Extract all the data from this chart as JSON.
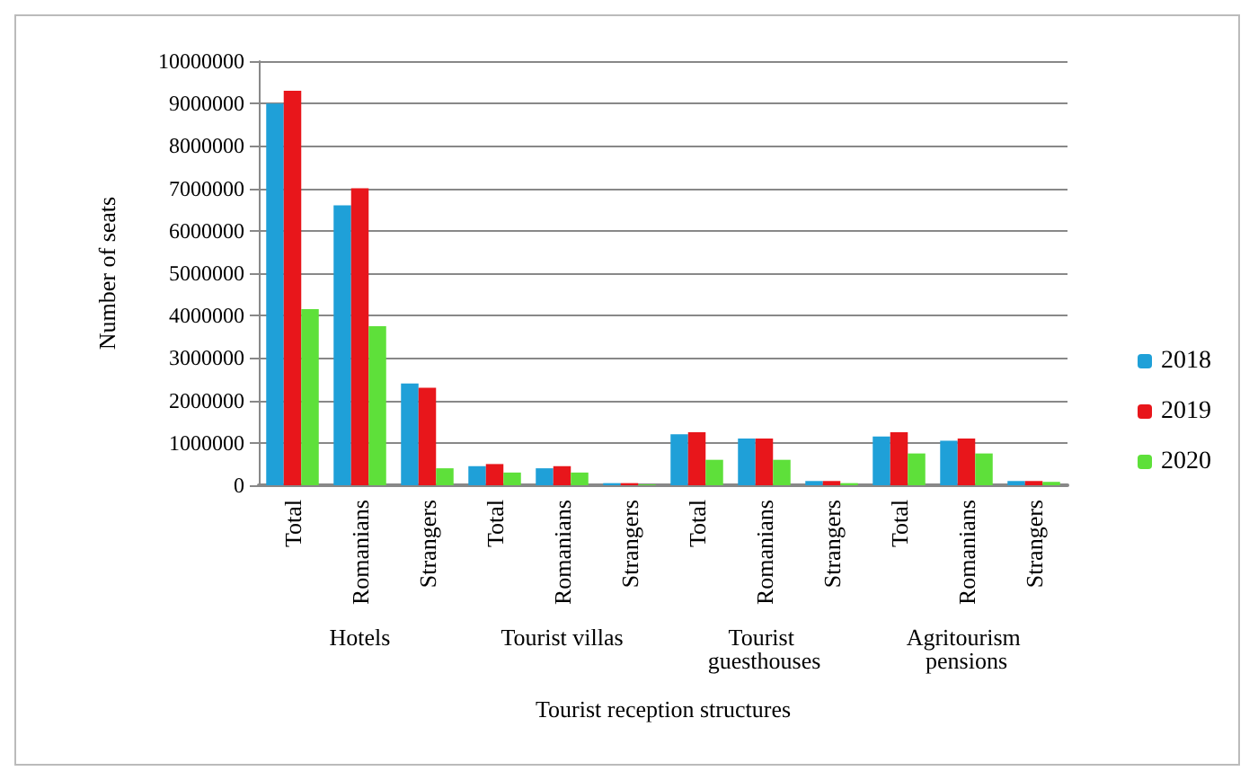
{
  "chart_data": {
    "type": "bar",
    "categories": [
      "Total",
      "Romanians",
      "Strangers",
      "Total",
      "Romanians",
      "Strangers",
      "Total",
      "Romanians",
      "Strangers",
      "Total",
      "Romanians",
      "Strangers"
    ],
    "series": [
      {
        "name": "2018",
        "color": "#1fa0d8",
        "values": [
          9000000,
          6600000,
          2400000,
          450000,
          400000,
          50000,
          1200000,
          1100000,
          100000,
          1150000,
          1050000,
          100000
        ]
      },
      {
        "name": "2019",
        "color": "#e8161b",
        "values": [
          9300000,
          7000000,
          2300000,
          500000,
          450000,
          50000,
          1250000,
          1100000,
          100000,
          1250000,
          1100000,
          100000
        ]
      },
      {
        "name": "2020",
        "color": "#5ee03a",
        "values": [
          4150000,
          3750000,
          400000,
          300000,
          300000,
          20000,
          600000,
          600000,
          50000,
          750000,
          750000,
          80000
        ]
      }
    ],
    "annotations": [
      "Hotels",
      "Tourist villas",
      "Tourist guesthouses",
      "Agritourism pensions"
    ],
    "xlabel": "Tourist reception structures",
    "ylabel": "Number of seats",
    "ylim": [
      0,
      10000000
    ],
    "yticks": [
      0,
      1000000,
      2000000,
      3000000,
      4000000,
      5000000,
      6000000,
      7000000,
      8000000,
      9000000,
      10000000
    ],
    "grid": "y",
    "legend": "right"
  }
}
